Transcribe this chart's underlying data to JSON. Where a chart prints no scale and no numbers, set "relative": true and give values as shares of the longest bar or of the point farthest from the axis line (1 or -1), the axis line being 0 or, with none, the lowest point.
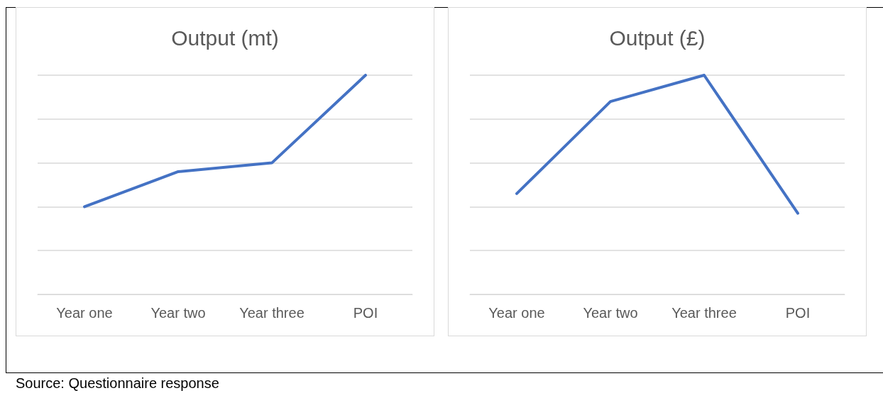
{
  "chart_data": [
    {
      "type": "line",
      "title": "Output (mt)",
      "categories": [
        "Year one",
        "Year two",
        "Year three",
        "POI"
      ],
      "relative": true,
      "grid": "y",
      "marker": "none",
      "line_style": "solid",
      "series": [
        {
          "color": "#4472c4",
          "values": [
            0.4,
            0.56,
            0.6,
            1
          ]
        }
      ],
      "annotations": [
        "Source: Questionnaire response"
      ]
    },
    {
      "type": "line",
      "title": "Output (£)",
      "categories": [
        "Year one",
        "Year two",
        "Year three",
        "POI"
      ],
      "relative": true,
      "grid": "y",
      "marker": "none",
      "line_style": "solid",
      "series": [
        {
          "color": "#4472c4",
          "values": [
            0.46,
            0.88,
            1,
            0.37
          ]
        }
      ]
    }
  ]
}
